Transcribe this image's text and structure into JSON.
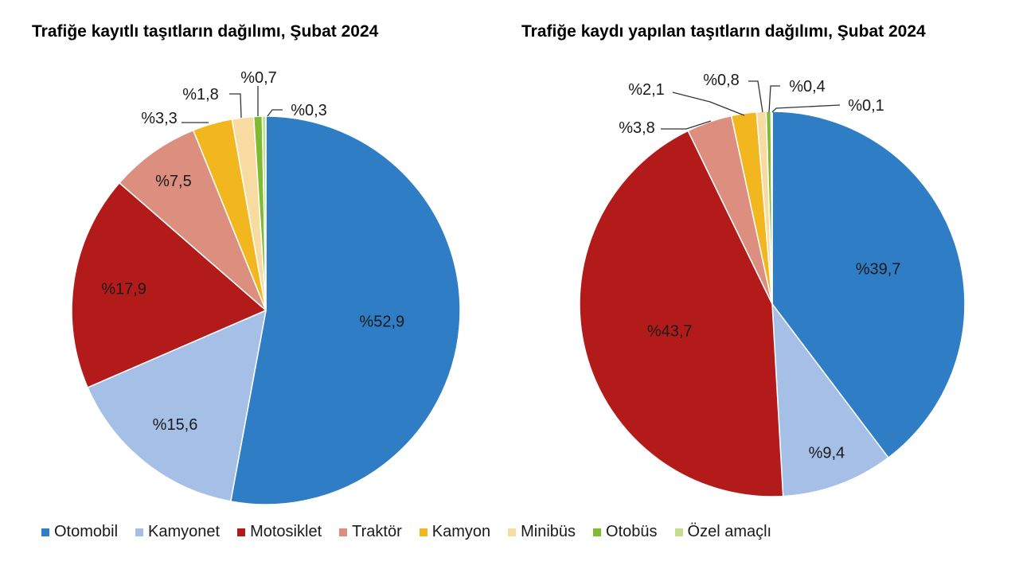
{
  "categories": [
    "Otomobil",
    "Kamyonet",
    "Motosiklet",
    "Traktör",
    "Kamyon",
    "Minibüs",
    "Otobüs",
    "Özel amaçlı"
  ],
  "colors": [
    "#2e7dc5",
    "#a5bfe6",
    "#b31b1b",
    "#dc8f7e",
    "#f2b61f",
    "#f7dba0",
    "#7fba33",
    "#c3de8f"
  ],
  "chart_data": [
    {
      "type": "pie",
      "title": "Trafiğe kayıtlı taşıtların dağılımı, Şubat 2024",
      "categories": [
        "Otomobil",
        "Kamyonet",
        "Motosiklet",
        "Traktör",
        "Kamyon",
        "Minibüs",
        "Otobüs",
        "Özel amaçlı"
      ],
      "values": [
        52.9,
        15.6,
        17.9,
        7.5,
        3.3,
        1.8,
        0.7,
        0.3
      ],
      "labels": [
        "%52,9",
        "%15,6",
        "%17,9",
        "%7,5",
        "%3,3",
        "%1,8",
        "%0,7",
        "%0,3"
      ],
      "legend": "bottom"
    },
    {
      "type": "pie",
      "title": "Trafiğe kaydı yapılan taşıtların dağılımı, Şubat 2024",
      "categories": [
        "Otomobil",
        "Kamyonet",
        "Motosiklet",
        "Traktör",
        "Kamyon",
        "Minibüs",
        "Otobüs",
        "Özel amaçlı"
      ],
      "values": [
        39.7,
        9.4,
        43.7,
        3.8,
        2.1,
        0.8,
        0.4,
        0.1
      ],
      "labels": [
        "%39,7",
        "%9,4",
        "%43,7",
        "%3,8",
        "%2,1",
        "%0,8",
        "%0,4",
        "%0,1"
      ],
      "legend": "bottom"
    }
  ]
}
